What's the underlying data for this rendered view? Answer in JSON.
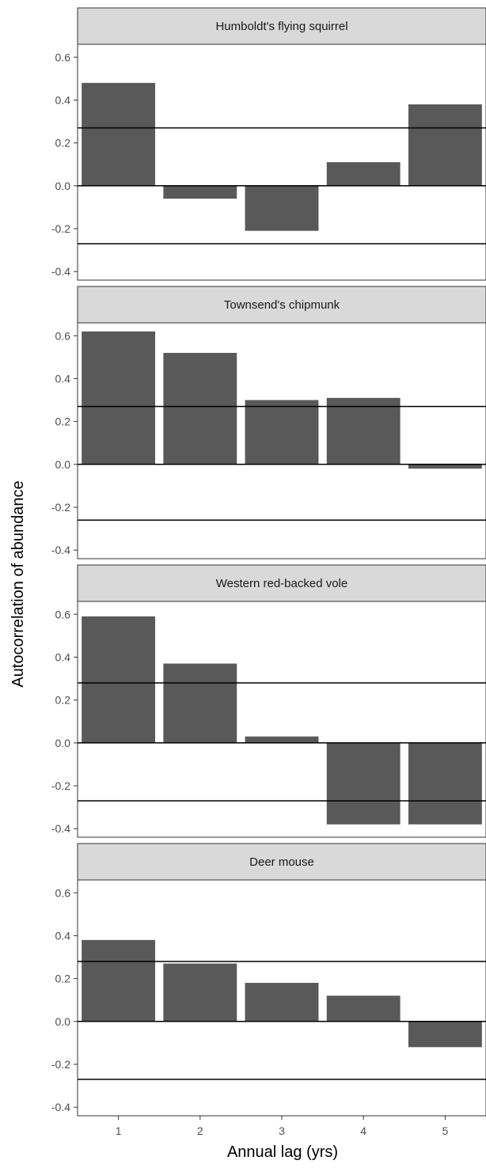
{
  "chart_data": {
    "type": "bar",
    "xlabel": "Annual lag (yrs)",
    "ylabel": "Autocorrelation of abundance",
    "categories": [
      "1",
      "2",
      "3",
      "4",
      "5"
    ],
    "ylim": [
      -0.44,
      0.66
    ],
    "yticks": [
      -0.4,
      -0.2,
      0.0,
      0.2,
      0.4,
      0.6
    ],
    "ytick_labels": [
      "-0.4",
      "-0.2",
      "0.0",
      "0.2",
      "0.4",
      "0.6"
    ],
    "grid": false,
    "bar_color": "#595959",
    "panels": [
      {
        "title": "Humboldt's flying squirrel",
        "values": [
          0.48,
          -0.06,
          -0.21,
          0.11,
          0.38
        ],
        "confidence_band": [
          -0.27,
          0.27
        ]
      },
      {
        "title": "Townsend's chipmunk",
        "values": [
          0.62,
          0.52,
          0.3,
          0.31,
          -0.02
        ],
        "confidence_band": [
          -0.26,
          0.27
        ]
      },
      {
        "title": "Western red-backed vole",
        "values": [
          0.59,
          0.37,
          0.03,
          -0.38,
          -0.38
        ],
        "confidence_band": [
          -0.27,
          0.28
        ]
      },
      {
        "title": "Deer mouse",
        "values": [
          0.38,
          0.27,
          0.18,
          0.12,
          -0.12
        ],
        "confidence_band": [
          -0.27,
          0.28
        ]
      }
    ]
  }
}
